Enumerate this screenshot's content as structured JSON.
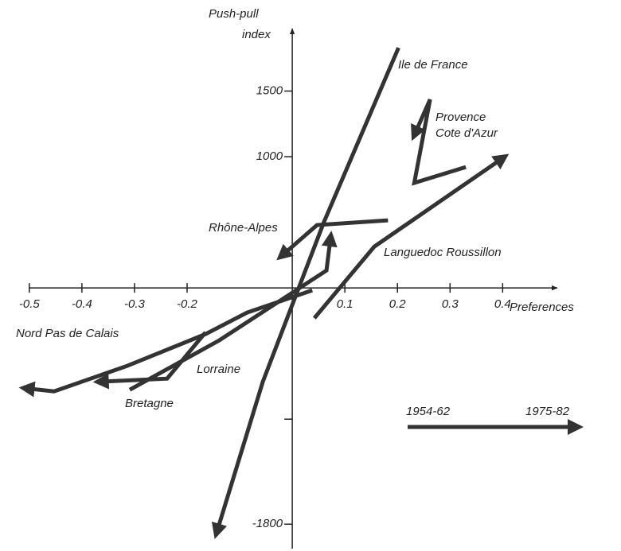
{
  "chart_data": {
    "type": "line",
    "x_label": "Preferences",
    "y_label": "Push-pull index",
    "xlim": [
      -0.53,
      0.51
    ],
    "ylim": [
      -1950,
      2000
    ],
    "xticks": [
      -0.5,
      -0.4,
      -0.3,
      -0.2,
      0.1,
      0.2,
      0.3,
      0.4
    ],
    "yticks": [
      1500,
      1000,
      {
        "value": -1000,
        "label": null
      },
      -1800
    ],
    "legend": {
      "start": "1954-62",
      "end": "1975-82"
    },
    "series": [
      {
        "name": "Ile de France",
        "color": "#333333",
        "x": [
          0.202,
          0.06,
          -0.056,
          -0.144
        ],
        "values": [
          1830,
          500,
          -715,
          -1867
        ]
      },
      {
        "name": "Provence Cote d'Azur",
        "color": "#333333",
        "x": [
          0.33,
          0.232,
          0.262,
          0.232
        ],
        "values": [
          921,
          800,
          1436,
          1164
        ]
      },
      {
        "name": "Languedoc Roussillon",
        "color": "#333333",
        "x": [
          0.042,
          0.156,
          0.402
        ],
        "values": [
          -230,
          315,
          994
        ]
      },
      {
        "name": "Rhône-Alpes",
        "color": "#333333",
        "x": [
          0.182,
          0.047,
          -0.021
        ],
        "values": [
          515,
          479,
          242
        ]
      },
      {
        "name": "Nord Pas de Calais",
        "color": "#333333",
        "x": [
          0.038,
          -0.086,
          -0.165,
          -0.314,
          -0.453,
          -0.508
        ],
        "values": [
          -18,
          -188,
          -352,
          -594,
          -788,
          -764
        ]
      },
      {
        "name": "Lorraine",
        "color": "#333333",
        "x": [
          -0.309,
          -0.139,
          0.065,
          0.073
        ],
        "values": [
          -776,
          -400,
          133,
          388
        ]
      },
      {
        "name": "Bretagne",
        "color": "#333333",
        "x": [
          -0.165,
          -0.238,
          -0.367
        ],
        "values": [
          -339,
          -691,
          -715
        ]
      }
    ]
  }
}
